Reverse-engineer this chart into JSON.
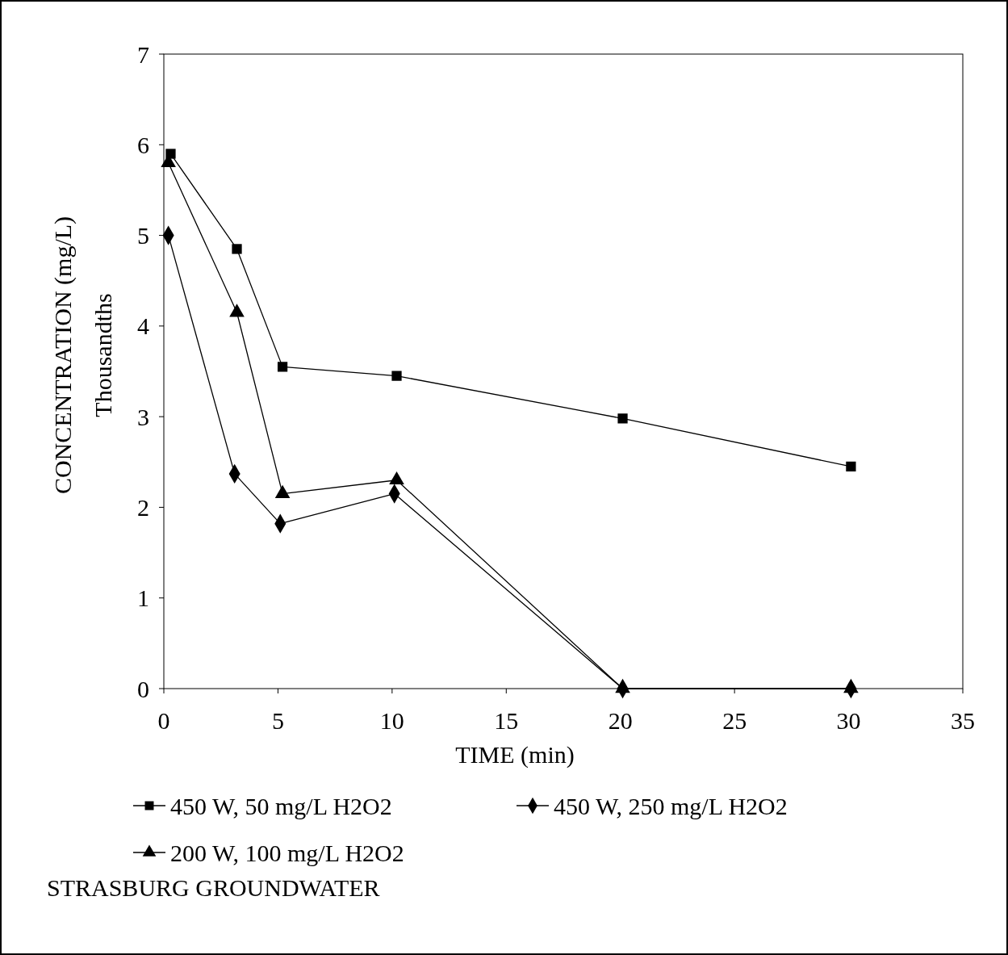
{
  "chart_data": {
    "type": "line",
    "xlabel": "TIME (min)",
    "ylabel": "CONCENTRATION (mg/L)\nThousandths",
    "xlim": [
      0,
      35
    ],
    "xticks": [
      0,
      5,
      10,
      15,
      20,
      25,
      30,
      35
    ],
    "ylim": [
      0,
      7
    ],
    "yticks": [
      0,
      1,
      2,
      3,
      4,
      5,
      6,
      7
    ],
    "grid": false,
    "legend": "bottom",
    "line_style": "solid",
    "series": [
      {
        "name": "450 W, 50 mg/L H2O2",
        "color": "#000000",
        "marker": "square",
        "x": [
          0.3,
          3.2,
          5.2,
          10.2,
          20.1,
          30.1
        ],
        "values": [
          5.9,
          4.85,
          3.55,
          3.45,
          2.98,
          2.45
        ]
      },
      {
        "name": "450 W, 250 mg/L H2O2",
        "color": "#000000",
        "marker": "diamond",
        "x": [
          0.2,
          3.1,
          5.1,
          10.1,
          20.1,
          30.1
        ],
        "values": [
          5.0,
          2.37,
          1.82,
          2.15,
          0,
          0
        ]
      },
      {
        "name": "200 W, 100 mg/L H2O2",
        "color": "#000000",
        "marker": "triangle",
        "x": [
          0.2,
          3.2,
          5.2,
          10.2,
          20.1,
          30.1
        ],
        "values": [
          5.8,
          4.15,
          2.15,
          2.3,
          0,
          0
        ]
      }
    ],
    "annotations": [
      "STRASBURG GROUNDWATER"
    ]
  }
}
